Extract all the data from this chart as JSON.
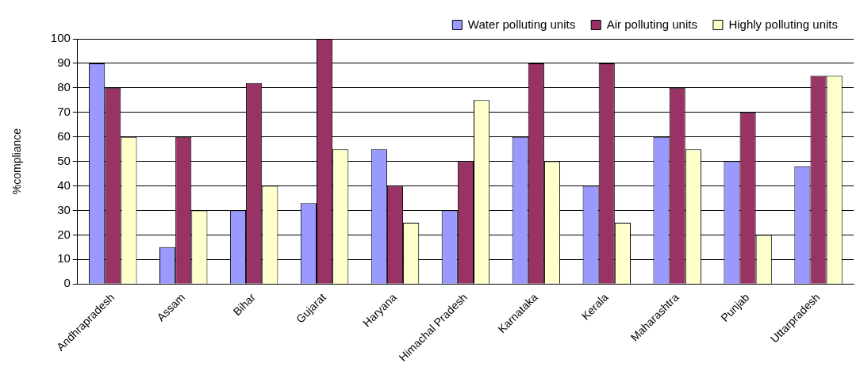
{
  "chart_data": {
    "type": "bar",
    "ylabel": "%compliance",
    "categories": [
      "Andhrapradesh",
      "Assam",
      "Bihar",
      "Gujarat",
      "Haryana",
      "Himachal Pradesh",
      "Karnataka",
      "Kerala",
      "Maharashtra",
      "Punjab",
      "Uttarpradesh"
    ],
    "series": [
      {
        "name": "Water polluting units",
        "color": "#9999ff",
        "values": [
          90,
          15,
          30,
          33,
          55,
          30,
          60,
          40,
          60,
          50,
          48
        ]
      },
      {
        "name": "Air polluting units",
        "color": "#993366",
        "values": [
          80,
          60,
          82,
          100,
          40,
          50,
          90,
          90,
          80,
          70,
          85
        ]
      },
      {
        "name": "Highly polluting units",
        "color": "#ffffcc",
        "values": [
          60,
          30,
          40,
          55,
          25,
          75,
          50,
          25,
          55,
          20,
          85
        ]
      }
    ],
    "ylim": [
      0,
      100
    ],
    "yticks": [
      0,
      10,
      20,
      30,
      40,
      50,
      60,
      70,
      80,
      90,
      100
    ],
    "grid": "y",
    "legend": "top right"
  }
}
